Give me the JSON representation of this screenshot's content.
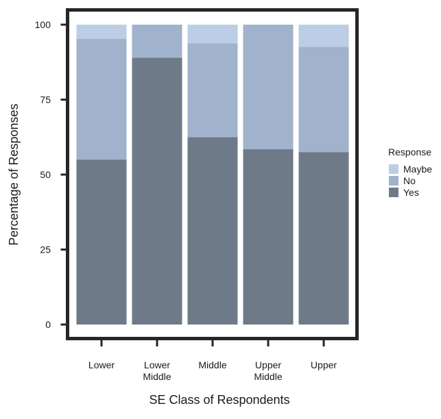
{
  "chart_data": {
    "type": "bar",
    "stacked": true,
    "categories": [
      [
        "Lower"
      ],
      [
        "Lower",
        "Middle"
      ],
      [
        "Middle"
      ],
      [
        "Upper",
        "Middle"
      ],
      [
        "Upper"
      ]
    ],
    "series": [
      {
        "name": "Yes",
        "color": "#6e7a88",
        "values": [
          55,
          89,
          62.5,
          58.5,
          57.5
        ]
      },
      {
        "name": "No",
        "color": "#a0b2cc",
        "values": [
          40.3,
          11,
          31.3,
          41.5,
          35.1
        ]
      },
      {
        "name": "Maybe",
        "color": "#bccde6",
        "values": [
          4.7,
          0,
          6.2,
          0,
          7.4
        ]
      }
    ],
    "xlabel": "SE Class of Respondents",
    "ylabel": "Percentage of Responses",
    "ylim": [
      0,
      100
    ],
    "yticks": [
      0,
      25,
      50,
      75,
      100
    ],
    "legend": {
      "title": "Response",
      "entries": [
        "Maybe",
        "No",
        "Yes"
      ],
      "placement": "right"
    },
    "grid": false
  }
}
